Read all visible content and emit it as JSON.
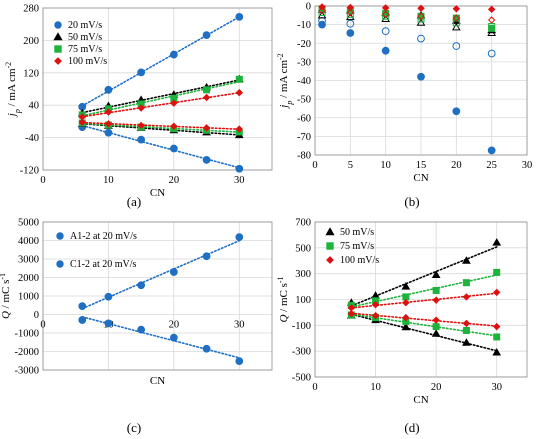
{
  "chart_data": [
    {
      "panel": "(a)",
      "type": "scatter",
      "xlabel": "CN",
      "ylabel": "j_p / mA cm-2",
      "xlim": [
        0,
        35
      ],
      "ylim": [
        -120,
        280
      ],
      "xticks": [
        0,
        10,
        20,
        30
      ],
      "yticks": [
        -120,
        -40,
        40,
        120,
        200,
        280
      ],
      "grid": true,
      "legend_position": "top-left",
      "series": [
        {
          "name": "20 mV/s",
          "marker": "circle",
          "color": "#1f6fc4",
          "group": "anodic",
          "x": [
            6,
            10,
            15,
            20,
            25,
            30
          ],
          "y": [
            36,
            78,
            121,
            165,
            213,
            258
          ]
        },
        {
          "name": "50 mV/s",
          "marker": "triangle",
          "color": "#000000",
          "group": "anodic",
          "x": [
            6,
            10,
            15,
            20,
            25,
            30
          ],
          "y": [
            20,
            38,
            53,
            66,
            84,
            104
          ]
        },
        {
          "name": "75 mV/s",
          "marker": "square",
          "color": "#1db33c",
          "group": "anodic",
          "x": [
            6,
            10,
            15,
            20,
            25,
            30
          ],
          "y": [
            16,
            31,
            43,
            57,
            78,
            104
          ]
        },
        {
          "name": "100 mV/s",
          "marker": "diamond",
          "color": "#e01010",
          "group": "anodic",
          "x": [
            6,
            10,
            15,
            20,
            25,
            30
          ],
          "y": [
            11,
            23,
            33,
            45,
            59,
            71
          ]
        },
        {
          "name": "",
          "marker": "circle",
          "color": "#1f6fc4",
          "group": "cathodic",
          "x": [
            6,
            10,
            15,
            20,
            25,
            30
          ],
          "y": [
            -14,
            -28,
            -45,
            -67,
            -95,
            -117
          ]
        },
        {
          "name": "",
          "marker": "triangle",
          "color": "#000000",
          "group": "cathodic",
          "x": [
            6,
            10,
            15,
            20,
            25,
            30
          ],
          "y": [
            -6,
            -11,
            -16,
            -22,
            -27,
            -34
          ]
        },
        {
          "name": "",
          "marker": "square",
          "color": "#1db33c",
          "group": "cathodic",
          "x": [
            6,
            10,
            15,
            20,
            25,
            30
          ],
          "y": [
            -4,
            -9,
            -14,
            -18,
            -22,
            -26
          ]
        },
        {
          "name": "",
          "marker": "diamond",
          "color": "#e01010",
          "group": "cathodic",
          "x": [
            6,
            10,
            15,
            20,
            25,
            30
          ],
          "y": [
            -2,
            -6,
            -10,
            -12,
            -16,
            -19
          ]
        }
      ]
    },
    {
      "panel": "(b)",
      "type": "scatter",
      "xlabel": "CN",
      "ylabel": "j_p / mA cm-2",
      "xlim": [
        0,
        30
      ],
      "ylim": [
        -80,
        0
      ],
      "xticks": [
        0,
        5,
        10,
        15,
        20,
        25,
        30
      ],
      "yticks": [
        0,
        -10,
        -20,
        -30,
        -40,
        -50,
        -60,
        -70,
        -80
      ],
      "grid": true,
      "series": [
        {
          "marker": "circle",
          "filled": true,
          "color": "#1f6fc4",
          "x": [
            1,
            5,
            10,
            15,
            20,
            25
          ],
          "y": [
            -10,
            -14.5,
            -24,
            -38,
            -56.5,
            -77.5
          ]
        },
        {
          "marker": "circle",
          "filled": false,
          "color": "#1f6fc4",
          "x": [
            1,
            5,
            10,
            15,
            20,
            25
          ],
          "y": [
            -8,
            -9.5,
            -13.5,
            -17.5,
            -21.5,
            -25.5
          ]
        },
        {
          "marker": "triangle",
          "filled": true,
          "color": "#000000",
          "x": [
            1,
            5,
            10,
            15,
            20,
            25
          ],
          "y": [
            -2,
            -2.5,
            -3.5,
            -5,
            -8,
            -13
          ]
        },
        {
          "marker": "triangle",
          "filled": false,
          "color": "#000000",
          "x": [
            1,
            5,
            10,
            15,
            20,
            25
          ],
          "y": [
            -5,
            -6,
            -7,
            -9,
            -11.5,
            -14.5
          ]
        },
        {
          "marker": "square",
          "filled": true,
          "color": "#1db33c",
          "x": [
            1,
            5,
            10,
            15,
            20,
            25
          ],
          "y": [
            -1.5,
            -2.5,
            -4,
            -5.5,
            -6.5,
            -12
          ]
        },
        {
          "marker": "square",
          "filled": false,
          "color": "#1db33c",
          "x": [
            1,
            5,
            10,
            15,
            20,
            25
          ],
          "y": [
            -3.5,
            -4.5,
            -5.5,
            -7,
            -9,
            -11
          ]
        },
        {
          "marker": "diamond",
          "filled": true,
          "color": "#e01010",
          "x": [
            1,
            5,
            10,
            15,
            20,
            25
          ],
          "y": [
            -0.5,
            -0.8,
            -1,
            -1.2,
            -1.5,
            -1.8
          ]
        },
        {
          "marker": "diamond",
          "filled": false,
          "color": "#e01010",
          "x": [
            1,
            5,
            10,
            15,
            20,
            25
          ],
          "y": [
            -2.5,
            -3.5,
            -4.5,
            -5.5,
            -6.5,
            -7.5
          ]
        }
      ]
    },
    {
      "panel": "(c)",
      "type": "scatter",
      "xlabel": "CN",
      "ylabel": "Q / mC s-1",
      "xlim": [
        0,
        35
      ],
      "ylim": [
        -3000,
        5000
      ],
      "xticks": [
        0,
        10,
        20,
        30
      ],
      "yticks": [
        5000,
        4000,
        3000,
        2000,
        1000,
        0,
        -1000,
        -2000,
        -3000
      ],
      "grid": true,
      "legend_position": "top-left",
      "series": [
        {
          "name": "A1-2 at 20 mV/s",
          "marker": "circle",
          "color": "#1f6fc4",
          "x": [
            6,
            10,
            15,
            20,
            25,
            30
          ],
          "y": [
            450,
            960,
            1580,
            2300,
            3150,
            4180
          ]
        },
        {
          "name": "C1-2 at 20 mV/s",
          "marker": "circle",
          "color": "#1f6fc4",
          "x": [
            6,
            10,
            15,
            20,
            25,
            30
          ],
          "y": [
            -300,
            -480,
            -820,
            -1250,
            -1850,
            -2520
          ]
        }
      ]
    },
    {
      "panel": "(d)",
      "type": "scatter",
      "xlabel": "CN",
      "ylabel": "Q / mC s-1",
      "xlim": [
        0,
        35
      ],
      "ylim": [
        -500,
        700
      ],
      "xticks": [
        0,
        10,
        20,
        30
      ],
      "yticks": [
        700,
        500,
        300,
        100,
        -100,
        -300,
        -500
      ],
      "grid": true,
      "legend_position": "top-left",
      "series": [
        {
          "name": "50 mV/s",
          "marker": "triangle",
          "color": "#000000",
          "x": [
            6,
            10,
            15,
            20,
            25,
            30
          ],
          "y": [
            75,
            130,
            200,
            290,
            400,
            540
          ]
        },
        {
          "name": "75 mV/s",
          "marker": "square",
          "color": "#1db33c",
          "x": [
            6,
            10,
            15,
            20,
            25,
            30
          ],
          "y": [
            55,
            90,
            120,
            170,
            230,
            310
          ]
        },
        {
          "name": "100 mV/s",
          "marker": "diamond",
          "color": "#e01010",
          "x": [
            6,
            10,
            15,
            20,
            25,
            30
          ],
          "y": [
            35,
            60,
            75,
            95,
            120,
            155
          ]
        },
        {
          "name": "",
          "marker": "triangle",
          "color": "#000000",
          "x": [
            6,
            10,
            15,
            20,
            25,
            30
          ],
          "y": [
            -25,
            -60,
            -115,
            -165,
            -235,
            -310
          ]
        },
        {
          "name": "",
          "marker": "square",
          "color": "#1db33c",
          "x": [
            6,
            10,
            15,
            20,
            25,
            30
          ],
          "y": [
            -20,
            -40,
            -70,
            -110,
            -140,
            -190
          ]
        },
        {
          "name": "",
          "marker": "diamond",
          "color": "#e01010",
          "x": [
            6,
            10,
            15,
            20,
            25,
            30
          ],
          "y": [
            -10,
            -25,
            -40,
            -60,
            -85,
            -110
          ]
        }
      ]
    }
  ]
}
